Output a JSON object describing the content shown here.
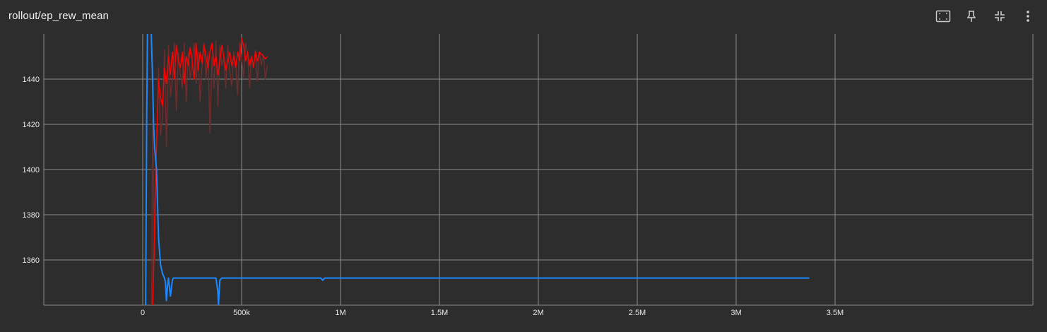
{
  "card": {
    "title": "rollout/ep_rew_mean"
  },
  "toolbar": [
    {
      "icon": "fit-domain-icon",
      "name": "fit-domain-button"
    },
    {
      "icon": "pin-icon",
      "name": "pin-button"
    },
    {
      "icon": "collapse-icon",
      "name": "collapse-button"
    },
    {
      "icon": "more-vertical-icon",
      "name": "more-options-button"
    }
  ],
  "colors": {
    "background": "#2d2d2d",
    "grid": "#8a8a8a",
    "axis_text": "#e8e8e8",
    "run_red": "#ff0000",
    "run_red_raw": "#6b2d2d",
    "run_blue": "#1e88ff"
  },
  "chart_data": {
    "type": "line",
    "title": "rollout/ep_rew_mean",
    "xlabel": "",
    "ylabel": "",
    "xlim": [
      -500000,
      4500000
    ],
    "ylim": [
      1340,
      1460
    ],
    "x_ticks": [
      {
        "value": 0,
        "label": "0"
      },
      {
        "value": 500000,
        "label": "500k"
      },
      {
        "value": 1000000,
        "label": "1M"
      },
      {
        "value": 1500000,
        "label": "1.5M"
      },
      {
        "value": 2000000,
        "label": "2M"
      },
      {
        "value": 2500000,
        "label": "2.5M"
      },
      {
        "value": 3000000,
        "label": "3M"
      },
      {
        "value": 3500000,
        "label": "3.5M"
      }
    ],
    "y_ticks": [
      {
        "value": 1360,
        "label": "1360"
      },
      {
        "value": 1380,
        "label": "1380"
      },
      {
        "value": 1400,
        "label": "1400"
      },
      {
        "value": 1420,
        "label": "1420"
      },
      {
        "value": 1440,
        "label": "1440"
      }
    ],
    "grid": true,
    "series": [
      {
        "color": "#1e88ff",
        "x": [
          15000,
          20000,
          25000,
          40000,
          50000,
          55000,
          60000,
          70000,
          80000,
          90000,
          100000,
          110000,
          115000,
          120000,
          125000,
          130000,
          140000,
          150000,
          155000,
          160000,
          180000,
          200000,
          250000,
          300000,
          370000,
          380000,
          383000,
          390000,
          400000,
          450000,
          500000,
          600000,
          700000,
          800000,
          900000,
          910000,
          920000,
          1000000,
          1500000,
          2000000,
          2500000,
          3000000,
          3370000
        ],
        "y": [
          1340,
          1420,
          1470,
          1470,
          1440,
          1420,
          1410,
          1400,
          1370,
          1358,
          1354,
          1352,
          1350,
          1342,
          1348,
          1352,
          1344,
          1351,
          1352,
          1352,
          1352,
          1352,
          1352,
          1352,
          1352,
          1346,
          1340,
          1351,
          1352,
          1352,
          1352,
          1352,
          1352,
          1352,
          1352,
          1351,
          1352,
          1352,
          1352,
          1352,
          1352,
          1352,
          1352
        ]
      },
      {
        "color": "#ff0000",
        "x": [
          50000,
          55000,
          60000,
          65000,
          70000,
          75000,
          80000,
          90000,
          100000,
          110000,
          120000,
          130000,
          140000,
          150000,
          160000,
          170000,
          180000,
          190000,
          200000,
          210000,
          220000,
          230000,
          240000,
          250000,
          260000,
          270000,
          280000,
          290000,
          300000,
          310000,
          320000,
          330000,
          340000,
          350000,
          360000,
          370000,
          380000,
          390000,
          400000,
          410000,
          420000,
          430000,
          440000,
          450000,
          460000,
          470000,
          480000,
          490000,
          500000,
          510000,
          520000,
          530000,
          540000,
          550000,
          560000,
          570000,
          580000,
          590000,
          600000,
          610000,
          620000,
          630000
        ],
        "y": [
          1340,
          1355,
          1378,
          1395,
          1410,
          1425,
          1440,
          1432,
          1428,
          1445,
          1438,
          1450,
          1442,
          1452,
          1440,
          1455,
          1448,
          1445,
          1452,
          1438,
          1450,
          1446,
          1454,
          1448,
          1440,
          1456,
          1444,
          1452,
          1447,
          1455,
          1450,
          1445,
          1452,
          1456,
          1446,
          1450,
          1442,
          1448,
          1455,
          1450,
          1444,
          1448,
          1452,
          1446,
          1450,
          1445,
          1452,
          1448,
          1458,
          1455,
          1448,
          1452,
          1446,
          1450,
          1445,
          1452,
          1448,
          1452,
          1451,
          1450,
          1449,
          1450
        ]
      },
      {
        "color": "#6b2d2d",
        "x": [
          45000,
          50000,
          60000,
          70000,
          80000,
          90000,
          100000,
          110000,
          120000,
          130000,
          140000,
          150000,
          160000,
          170000,
          180000,
          190000,
          200000,
          210000,
          220000,
          230000,
          240000,
          250000,
          260000,
          270000,
          280000,
          290000,
          300000,
          310000,
          320000,
          330000,
          340000,
          350000,
          360000,
          370000,
          380000,
          390000,
          400000,
          410000,
          420000,
          430000,
          440000,
          450000,
          460000,
          470000,
          480000,
          490000,
          500000,
          510000,
          520000,
          530000,
          540000,
          550000,
          560000,
          570000,
          580000,
          590000,
          600000,
          610000,
          620000,
          630000
        ],
        "y": [
          1340,
          1422,
          1360,
          1412,
          1445,
          1415,
          1422,
          1453,
          1410,
          1455,
          1432,
          1440,
          1456,
          1426,
          1452,
          1442,
          1436,
          1456,
          1430,
          1452,
          1440,
          1447,
          1456,
          1438,
          1452,
          1430,
          1446,
          1456,
          1440,
          1452,
          1416,
          1450,
          1436,
          1457,
          1428,
          1455,
          1446,
          1450,
          1436,
          1455,
          1443,
          1437,
          1452,
          1446,
          1433,
          1456,
          1449,
          1441,
          1456,
          1452,
          1436,
          1450,
          1446,
          1453,
          1439,
          1452,
          1446,
          1451,
          1440,
          1446
        ]
      }
    ]
  }
}
